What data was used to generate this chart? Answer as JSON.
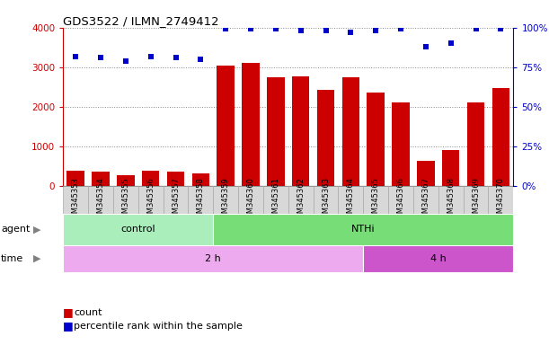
{
  "title": "GDS3522 / ILMN_2749412",
  "samples": [
    "GSM345353",
    "GSM345354",
    "GSM345355",
    "GSM345356",
    "GSM345357",
    "GSM345358",
    "GSM345359",
    "GSM345360",
    "GSM345361",
    "GSM345362",
    "GSM345363",
    "GSM345364",
    "GSM345365",
    "GSM345366",
    "GSM345367",
    "GSM345368",
    "GSM345369",
    "GSM345370"
  ],
  "counts": [
    390,
    360,
    280,
    390,
    360,
    330,
    3050,
    3100,
    2750,
    2760,
    2430,
    2750,
    2360,
    2120,
    640,
    920,
    2120,
    2480
  ],
  "percentiles": [
    82,
    81,
    79,
    82,
    81,
    80,
    99,
    99,
    99,
    98,
    98,
    97,
    98,
    99,
    88,
    90,
    99,
    99
  ],
  "bar_color": "#cc0000",
  "dot_color": "#0000cc",
  "ylim_left": [
    0,
    4000
  ],
  "ylim_right": [
    0,
    100
  ],
  "yticks_left": [
    0,
    1000,
    2000,
    3000,
    4000
  ],
  "yticks_right": [
    0,
    25,
    50,
    75,
    100
  ],
  "agent_groups": [
    {
      "label": "control",
      "start": 0,
      "end": 6,
      "color": "#aaeebb"
    },
    {
      "label": "NTHi",
      "start": 6,
      "end": 18,
      "color": "#77dd77"
    }
  ],
  "time_groups": [
    {
      "label": "2 h",
      "start": 0,
      "end": 12,
      "color": "#eeaaee"
    },
    {
      "label": "4 h",
      "start": 12,
      "end": 18,
      "color": "#cc55cc"
    }
  ],
  "legend_count_label": "count",
  "legend_pct_label": "percentile rank within the sample",
  "bar_color_hex": "#cc0000",
  "dot_color_hex": "#0000cc",
  "grid_color": "#888888",
  "xlabel_bg_color": "#cccccc",
  "xlabel_border_color": "#999999"
}
